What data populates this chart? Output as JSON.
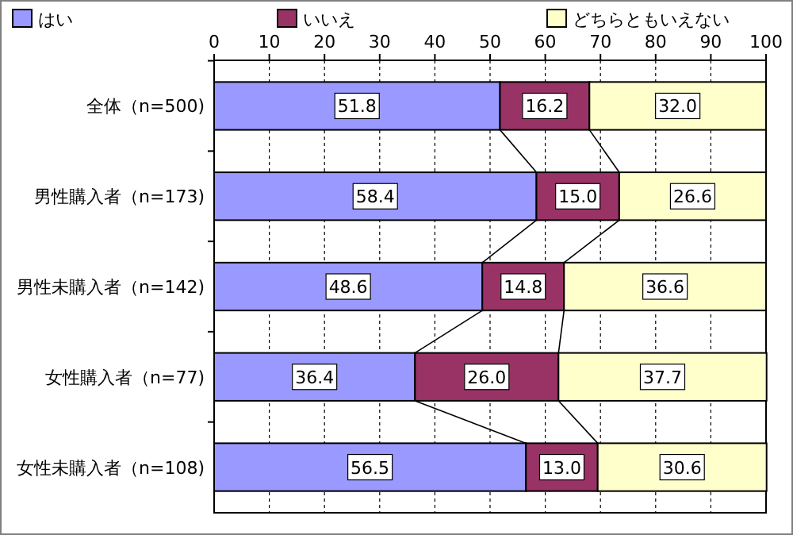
{
  "chart_data": {
    "type": "bar",
    "orientation": "horizontal",
    "stacked": true,
    "categories": [
      "全体（n=500)",
      "男性購入者（n=173)",
      "男性未購入者（n=142)",
      "女性購入者（n=77)",
      "女性未購入者（n=108)"
    ],
    "series": [
      {
        "name": "はい",
        "color": "#9999ff",
        "values": [
          51.8,
          58.4,
          48.6,
          36.4,
          56.5
        ],
        "value_labels": [
          "51.8",
          "58.4",
          "48.6",
          "36.4",
          "56.5"
        ]
      },
      {
        "name": "いいえ",
        "color": "#993366",
        "values": [
          16.2,
          15,
          14.8,
          26,
          13
        ],
        "value_labels": [
          "16.2",
          "15.0",
          "14.8",
          "26.0",
          "13.0"
        ]
      },
      {
        "name": "どちらともいえない",
        "color": "#ffffcc",
        "values": [
          32,
          26.6,
          36.6,
          37.7,
          30.6
        ],
        "value_labels": [
          "32.0",
          "26.6",
          "36.6",
          "37.7",
          "30.6"
        ]
      }
    ],
    "xlim": [
      0,
      100
    ],
    "xticks": [
      0,
      10,
      20,
      30,
      40,
      50,
      60,
      70,
      80,
      90,
      100
    ],
    "grid": "x",
    "legend": "top"
  }
}
